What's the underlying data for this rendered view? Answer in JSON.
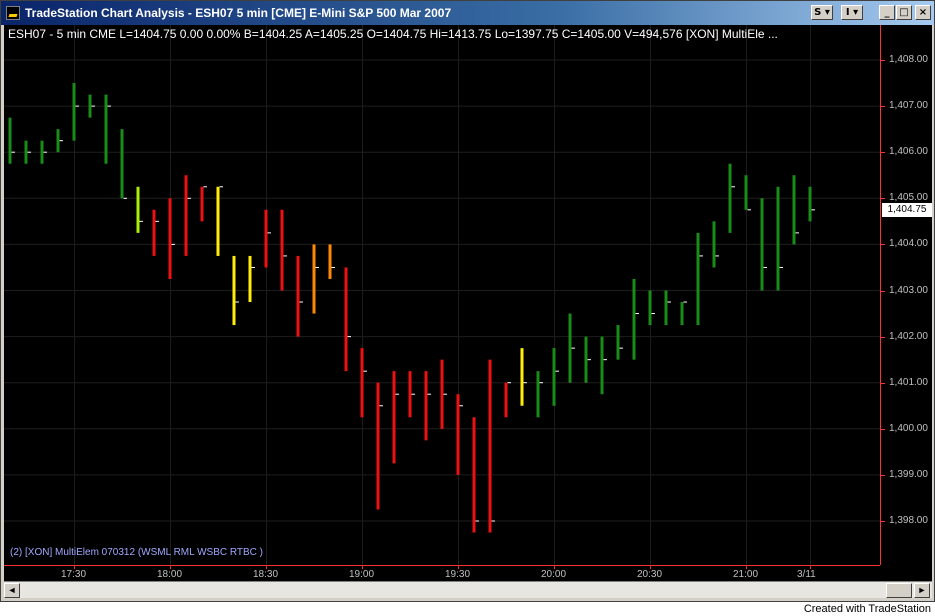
{
  "window": {
    "title": "TradeStation Chart Analysis - ESH07  5 min  [CME] E-Mini S&P 500 Mar 2007",
    "s_button": "S ▾",
    "i_button": "I ▾",
    "min_glyph": "_",
    "max_glyph": "□",
    "close_glyph": "×"
  },
  "header": {
    "text": "ESH07 - 5 min  CME  L=1404.75  0.00  0.00%  B=1404.25  A=1405.25  O=1404.75  Hi=1413.75  Lo=1397.75  C=1405.00  V=494,576  [XON] MultiEle ..."
  },
  "study_label": "(2) [XON] MultiElem 070312 (WSML RML WSBC RTBC )",
  "last_price": "1,404.75",
  "footer": "Created with TradeStation",
  "scroll": {
    "left": "◄",
    "right": "►"
  },
  "colors": {
    "up_green": "#1a8c1a",
    "down_red": "#ee1111",
    "yellow": "#ffee00",
    "orange": "#ff8800",
    "lime": "#aaee00"
  },
  "chart_data": {
    "type": "ohlc-bar",
    "y_ticks": [
      "1,408.00",
      "1,407.00",
      "1,406.00",
      "1,405.00",
      "1,404.00",
      "1,403.00",
      "1,402.00",
      "1,401.00",
      "1,400.00",
      "1,399.00",
      "1,398.00"
    ],
    "y_tick_values": [
      1408,
      1407,
      1406,
      1405,
      1404,
      1403,
      1402,
      1401,
      1400,
      1399,
      1398
    ],
    "x_ticks": [
      "17:30",
      "18:00",
      "18:30",
      "19:00",
      "19:30",
      "20:00",
      "20:30",
      "21:00",
      "3/11"
    ],
    "x_tick_bars": [
      4,
      10,
      16,
      22,
      28,
      34,
      40,
      46,
      50
    ],
    "bars": [
      {
        "h": 1406.75,
        "l": 1405.75,
        "c": 1406.0,
        "col": "green"
      },
      {
        "h": 1406.25,
        "l": 1405.75,
        "c": 1406.0,
        "col": "green"
      },
      {
        "h": 1406.25,
        "l": 1405.75,
        "c": 1406.0,
        "col": "green"
      },
      {
        "h": 1406.5,
        "l": 1406.0,
        "c": 1406.25,
        "col": "green"
      },
      {
        "h": 1407.5,
        "l": 1406.25,
        "c": 1407.0,
        "col": "green"
      },
      {
        "h": 1407.25,
        "l": 1406.75,
        "c": 1407.0,
        "col": "green"
      },
      {
        "h": 1407.25,
        "l": 1405.75,
        "c": 1407.0,
        "col": "green"
      },
      {
        "h": 1406.5,
        "l": 1405.0,
        "c": 1405.0,
        "col": "green"
      },
      {
        "h": 1405.25,
        "l": 1404.25,
        "c": 1404.5,
        "col": "lime"
      },
      {
        "h": 1404.75,
        "l": 1403.75,
        "c": 1404.5,
        "col": "red"
      },
      {
        "h": 1405.0,
        "l": 1403.25,
        "c": 1404.0,
        "col": "red"
      },
      {
        "h": 1405.5,
        "l": 1403.75,
        "c": 1405.0,
        "col": "red"
      },
      {
        "h": 1405.25,
        "l": 1404.5,
        "c": 1405.25,
        "col": "red"
      },
      {
        "h": 1405.25,
        "l": 1403.75,
        "c": 1405.25,
        "col": "yellow"
      },
      {
        "h": 1403.75,
        "l": 1402.25,
        "c": 1402.75,
        "col": "yellow"
      },
      {
        "h": 1403.75,
        "l": 1402.75,
        "c": 1403.5,
        "col": "yellow"
      },
      {
        "h": 1404.75,
        "l": 1403.5,
        "c": 1404.25,
        "col": "red"
      },
      {
        "h": 1404.75,
        "l": 1403.0,
        "c": 1403.75,
        "col": "red"
      },
      {
        "h": 1403.75,
        "l": 1402.0,
        "c": 1402.75,
        "col": "red"
      },
      {
        "h": 1404.0,
        "l": 1402.5,
        "c": 1403.5,
        "col": "orange"
      },
      {
        "h": 1404.0,
        "l": 1403.25,
        "c": 1403.5,
        "col": "orange"
      },
      {
        "h": 1403.5,
        "l": 1401.25,
        "c": 1402.0,
        "col": "red"
      },
      {
        "h": 1401.75,
        "l": 1400.25,
        "c": 1401.25,
        "col": "red"
      },
      {
        "h": 1401.0,
        "l": 1398.25,
        "c": 1400.5,
        "col": "red"
      },
      {
        "h": 1401.25,
        "l": 1399.25,
        "c": 1400.75,
        "col": "red"
      },
      {
        "h": 1401.25,
        "l": 1400.25,
        "c": 1400.75,
        "col": "red"
      },
      {
        "h": 1401.25,
        "l": 1399.75,
        "c": 1400.75,
        "col": "red"
      },
      {
        "h": 1401.5,
        "l": 1400.0,
        "c": 1400.75,
        "col": "red"
      },
      {
        "h": 1400.75,
        "l": 1399.0,
        "c": 1400.5,
        "col": "red"
      },
      {
        "h": 1400.25,
        "l": 1397.75,
        "c": 1398.0,
        "col": "red"
      },
      {
        "h": 1401.5,
        "l": 1397.75,
        "c": 1398.0,
        "col": "red"
      },
      {
        "h": 1401.0,
        "l": 1400.25,
        "c": 1401.0,
        "col": "red"
      },
      {
        "h": 1401.75,
        "l": 1400.5,
        "c": 1401.0,
        "col": "yellow"
      },
      {
        "h": 1401.25,
        "l": 1400.25,
        "c": 1401.0,
        "col": "green"
      },
      {
        "h": 1401.75,
        "l": 1400.5,
        "c": 1401.25,
        "col": "green"
      },
      {
        "h": 1402.5,
        "l": 1401.0,
        "c": 1401.75,
        "col": "green"
      },
      {
        "h": 1402.0,
        "l": 1401.0,
        "c": 1401.5,
        "col": "green"
      },
      {
        "h": 1402.0,
        "l": 1400.75,
        "c": 1401.5,
        "col": "green"
      },
      {
        "h": 1402.25,
        "l": 1401.5,
        "c": 1401.75,
        "col": "green"
      },
      {
        "h": 1403.25,
        "l": 1401.5,
        "c": 1402.5,
        "col": "green"
      },
      {
        "h": 1403.0,
        "l": 1402.25,
        "c": 1402.5,
        "col": "green"
      },
      {
        "h": 1403.0,
        "l": 1402.25,
        "c": 1402.75,
        "col": "green"
      },
      {
        "h": 1402.75,
        "l": 1402.25,
        "c": 1402.75,
        "col": "green"
      },
      {
        "h": 1404.25,
        "l": 1402.25,
        "c": 1403.75,
        "col": "green"
      },
      {
        "h": 1404.5,
        "l": 1403.5,
        "c": 1403.75,
        "col": "green"
      },
      {
        "h": 1405.75,
        "l": 1404.25,
        "c": 1405.25,
        "col": "green"
      },
      {
        "h": 1405.5,
        "l": 1404.75,
        "c": 1404.75,
        "col": "green"
      },
      {
        "h": 1405.0,
        "l": 1403.0,
        "c": 1403.5,
        "col": "green"
      },
      {
        "h": 1405.25,
        "l": 1403.0,
        "c": 1403.5,
        "col": "green"
      },
      {
        "h": 1405.5,
        "l": 1404.0,
        "c": 1404.25,
        "col": "green"
      },
      {
        "h": 1405.25,
        "l": 1404.5,
        "c": 1404.75,
        "col": "green"
      }
    ]
  }
}
